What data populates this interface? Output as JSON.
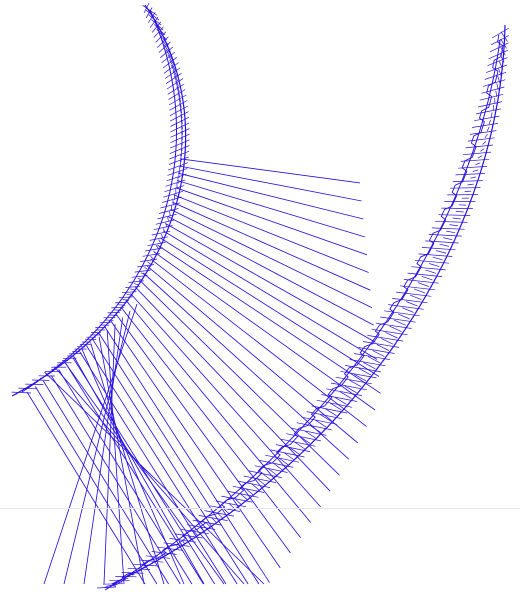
{
  "figure": {
    "stroke_color": "#2a12e0",
    "background_color": "#ffffff",
    "divider_color": "#e6e6ea",
    "upper_band_tick_count": 150,
    "lower_band_tick_count": 190,
    "connector_count": 36,
    "left_connector_count": 12
  }
}
